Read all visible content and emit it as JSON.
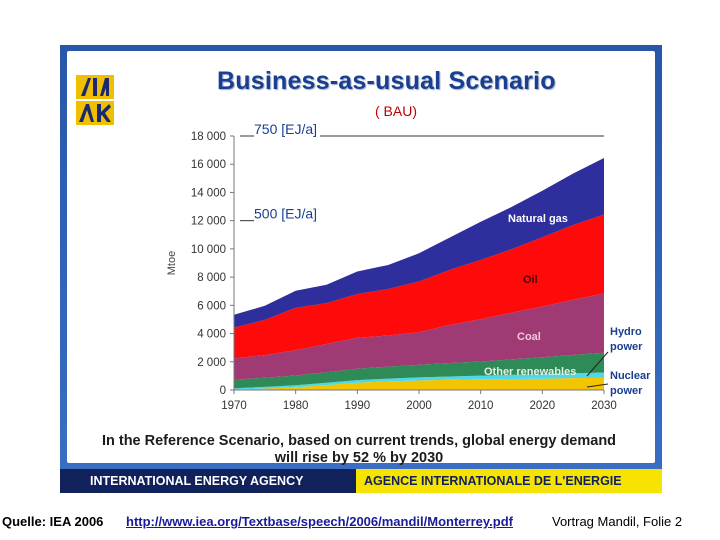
{
  "slide": {
    "title": "Business-as-usual Scenario",
    "subtitle": "( BAU)",
    "caption_line1": "In the Reference Scenario, based on current trends, global energy demand",
    "caption_line2": "will rise by 52 % by 2030",
    "footer_left": "INTERNATIONAL ENERGY AGENCY",
    "footer_right": "AGENCE INTERNATIONALE DE L'ENERGIE",
    "colors": {
      "frame": "#2856a8",
      "footer_dark": "#10215c",
      "footer_yellow": "#f6e400",
      "title": "#1a3f8f",
      "subtitle": "#c00000"
    }
  },
  "bottom": {
    "source": "Quelle: IEA 2006",
    "link": "http://www.iea.org/Textbase/speech/2006/mandil/Monterrey.pdf",
    "reference": "Vortrag Mandil, Folie 2"
  },
  "chart_data": {
    "type": "area",
    "stacked": true,
    "ylabel": "Mtoe",
    "xlabel": "",
    "xlim": [
      1970,
      2030
    ],
    "ylim": [
      0,
      18000
    ],
    "x_ticks": [
      "1970",
      "1980",
      "1990",
      "2000",
      "2010",
      "2020",
      "2030"
    ],
    "y_ticks": [
      "0",
      "2 000",
      "4 000",
      "6 000",
      "8 000",
      "10 000",
      "12 000",
      "14 000",
      "16 000",
      "18 000"
    ],
    "x": [
      1970,
      1975,
      1980,
      1985,
      1990,
      1995,
      2000,
      2005,
      2010,
      2015,
      2020,
      2025,
      2030
    ],
    "series": [
      {
        "name": "Nuclear power",
        "color": "#f5c400",
        "values": [
          30,
          100,
          190,
          350,
          520,
          610,
          670,
          720,
          760,
          780,
          800,
          840,
          860
        ]
      },
      {
        "name": "Hydro power",
        "color": "#4fd8e8",
        "values": [
          100,
          120,
          140,
          160,
          180,
          200,
          220,
          240,
          260,
          290,
          320,
          350,
          380
        ]
      },
      {
        "name": "Other renewables",
        "color": "#2e8b57",
        "values": [
          600,
          650,
          700,
          750,
          800,
          850,
          900,
          950,
          1000,
          1100,
          1200,
          1300,
          1400
        ]
      },
      {
        "name": "Coal",
        "color": "#a03a74",
        "values": [
          1500,
          1600,
          1800,
          2000,
          2200,
          2200,
          2300,
          2700,
          3000,
          3300,
          3600,
          3900,
          4200
        ]
      },
      {
        "name": "Oil",
        "color": "#ff0a0a",
        "values": [
          2200,
          2500,
          3000,
          2900,
          3100,
          3300,
          3600,
          3900,
          4200,
          4500,
          4900,
          5300,
          5600
        ]
      },
      {
        "name": "Natural gas",
        "color": "#2e2e9c",
        "values": [
          900,
          1000,
          1200,
          1300,
          1600,
          1700,
          2000,
          2300,
          2700,
          3000,
          3300,
          3650,
          4000
        ]
      }
    ],
    "series_labels": [
      "Natural gas",
      "Oil",
      "Coal",
      "Other renewables",
      "Hydro power",
      "Nuclear power"
    ],
    "label_lines": {
      "hydro": [
        "Hydro",
        "power"
      ],
      "nuclear": [
        "Nuclear",
        "power"
      ]
    },
    "annotations": [
      {
        "text": "750 [EJ/a]",
        "y": 18000
      },
      {
        "text": "500 [EJ/a]",
        "y": 12000
      }
    ]
  }
}
